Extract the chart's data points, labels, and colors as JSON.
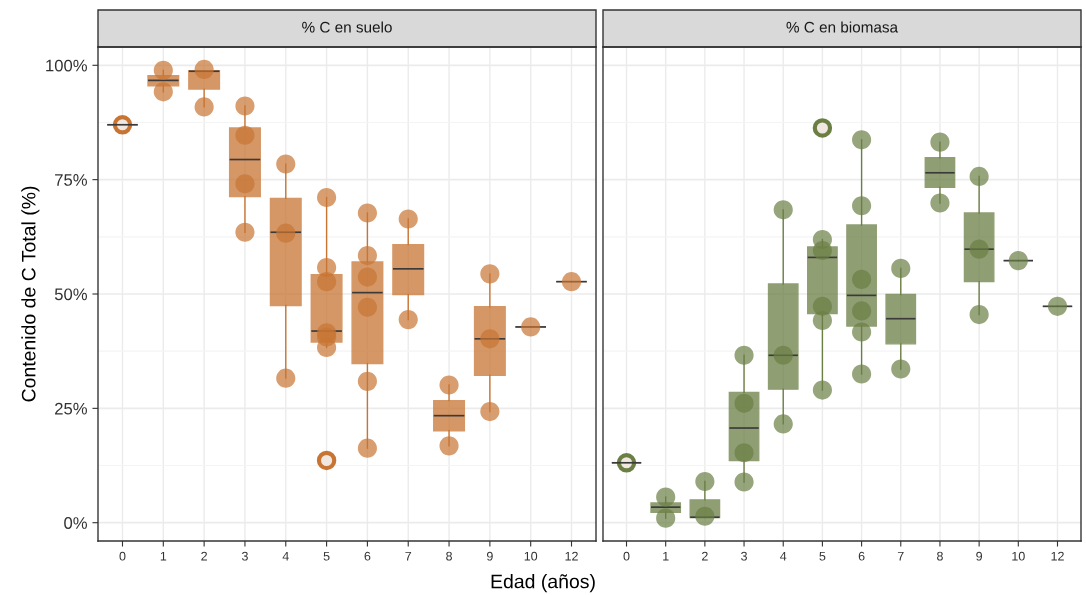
{
  "chart_data": [
    {
      "type": "box",
      "title": "% C en suelo",
      "xlabel": "Edad (años)",
      "ylabel": "Contenido de C Total (%)",
      "categories": [
        "0",
        "1",
        "2",
        "3",
        "4",
        "5",
        "6",
        "7",
        "8",
        "9",
        "10",
        "12"
      ],
      "ylim": [
        -4,
        104
      ],
      "yticks": [
        {
          "value": 0,
          "label": "0%"
        },
        {
          "value": 25,
          "label": "25%"
        },
        {
          "value": 50,
          "label": "50%"
        },
        {
          "value": 75,
          "label": "75%"
        },
        {
          "value": 100,
          "label": "100%"
        }
      ],
      "grid": true,
      "series": [
        {
          "type": "box",
          "color": "#c87533",
          "boxes": [
            {
              "low": 87,
              "q1": 87,
              "median": 87,
              "q3": 87,
              "high": 87,
              "outliers": [
                87
              ]
            },
            {
              "low": 94.2,
              "q1": 95.5,
              "median": 96.7,
              "q3": 97.7,
              "high": 98.9
            },
            {
              "low": 90.9,
              "q1": 94.8,
              "median": 98.7,
              "q3": 98.8,
              "high": 98.8
            },
            {
              "low": 63.5,
              "q1": 71.3,
              "median": 79.4,
              "q3": 86.3,
              "high": 91.1
            },
            {
              "low": 31.6,
              "q1": 47.5,
              "median": 63.5,
              "q3": 70.9,
              "high": 78.4
            },
            {
              "low": 38.3,
              "q1": 39.5,
              "median": 41.9,
              "q3": 54.2,
              "high": 71.1,
              "outliers": [
                13.6
              ]
            },
            {
              "low": 16.3,
              "q1": 34.8,
              "median": 50.3,
              "q3": 57.0,
              "high": 67.7
            },
            {
              "low": 44.4,
              "q1": 49.9,
              "median": 55.5,
              "q3": 60.8,
              "high": 66.4
            },
            {
              "low": 16.8,
              "q1": 20.1,
              "median": 23.4,
              "q3": 26.7,
              "high": 30.1
            },
            {
              "low": 24.3,
              "q1": 32.2,
              "median": 40.2,
              "q3": 47.2,
              "high": 54.4
            },
            {
              "low": 42.8,
              "q1": 42.8,
              "median": 42.8,
              "q3": 42.8,
              "high": 42.8
            },
            {
              "low": 52.7,
              "q1": 52.7,
              "median": 52.7,
              "q3": 52.7,
              "high": 52.7
            }
          ]
        },
        {
          "type": "scatter",
          "color": "#c87533",
          "x": [
            "1",
            "1",
            "2",
            "2",
            "3",
            "3",
            "3",
            "3",
            "4",
            "4",
            "4",
            "5",
            "5",
            "5",
            "5",
            "5",
            "5",
            "6",
            "6",
            "6",
            "6",
            "6",
            "6",
            "7",
            "7",
            "8",
            "8",
            "9",
            "9",
            "9",
            "10",
            "12"
          ],
          "values": [
            98.9,
            94.2,
            99.1,
            90.9,
            91.1,
            84.7,
            74.1,
            63.5,
            78.4,
            63.3,
            31.6,
            71.1,
            55.8,
            52.7,
            41.5,
            40.6,
            38.3,
            67.7,
            58.4,
            53.7,
            47.1,
            30.9,
            16.3,
            66.4,
            44.4,
            30.1,
            16.8,
            54.4,
            40.2,
            24.3,
            42.8,
            52.7
          ]
        }
      ]
    },
    {
      "type": "box",
      "title": "% C en biomasa",
      "categories": [
        "0",
        "1",
        "2",
        "3",
        "4",
        "5",
        "6",
        "7",
        "8",
        "9",
        "10",
        "12"
      ],
      "ylim": [
        -4,
        104
      ],
      "yticks": [
        0,
        25,
        50,
        75,
        100
      ],
      "tick_labels": "x",
      "grid": true,
      "series": [
        {
          "type": "box",
          "color": "#6b7f45",
          "boxes": [
            {
              "low": 13.1,
              "q1": 13.1,
              "median": 13.1,
              "q3": 13.1,
              "high": 13.1,
              "outliers": [
                13.1
              ]
            },
            {
              "low": 1.0,
              "q1": 2.3,
              "median": 3.4,
              "q3": 4.3,
              "high": 5.6
            },
            {
              "low": 1.1,
              "q1": 1.1,
              "median": 1.2,
              "q3": 5.0,
              "high": 9.0
            },
            {
              "low": 8.9,
              "q1": 13.6,
              "median": 20.7,
              "q3": 28.5,
              "high": 36.6
            },
            {
              "low": 21.6,
              "q1": 29.2,
              "median": 36.6,
              "q3": 52.2,
              "high": 68.4
            },
            {
              "low": 29.0,
              "q1": 45.7,
              "median": 58.0,
              "q3": 60.3,
              "high": 61.9,
              "outliers": [
                86.3
              ]
            },
            {
              "low": 32.5,
              "q1": 43.0,
              "median": 49.7,
              "q3": 65.1,
              "high": 83.7
            },
            {
              "low": 33.6,
              "q1": 39.1,
              "median": 44.6,
              "q3": 49.9,
              "high": 55.6
            },
            {
              "low": 69.9,
              "q1": 73.3,
              "median": 76.5,
              "q3": 79.8,
              "high": 83.2
            },
            {
              "low": 45.5,
              "q1": 52.7,
              "median": 59.8,
              "q3": 67.7,
              "high": 75.7
            },
            {
              "low": 57.3,
              "q1": 57.3,
              "median": 57.3,
              "q3": 57.3,
              "high": 57.3
            },
            {
              "low": 47.3,
              "q1": 47.3,
              "median": 47.3,
              "q3": 47.3,
              "high": 47.3
            }
          ]
        },
        {
          "type": "scatter",
          "color": "#6b7f45",
          "x": [
            "1",
            "1",
            "2",
            "2",
            "3",
            "3",
            "3",
            "3",
            "4",
            "4",
            "4",
            "5",
            "5",
            "5",
            "5",
            "5",
            "6",
            "6",
            "6",
            "6",
            "6",
            "6",
            "7",
            "7",
            "8",
            "8",
            "9",
            "9",
            "9",
            "10",
            "12"
          ],
          "values": [
            5.6,
            1.0,
            9.0,
            1.4,
            36.6,
            26.1,
            15.3,
            8.9,
            68.4,
            36.6,
            21.6,
            61.9,
            59.5,
            47.3,
            44.2,
            29.0,
            83.7,
            69.3,
            53.2,
            46.3,
            41.7,
            32.5,
            55.6,
            33.6,
            83.2,
            69.9,
            75.7,
            59.8,
            45.5,
            57.3,
            47.3
          ]
        }
      ]
    }
  ]
}
